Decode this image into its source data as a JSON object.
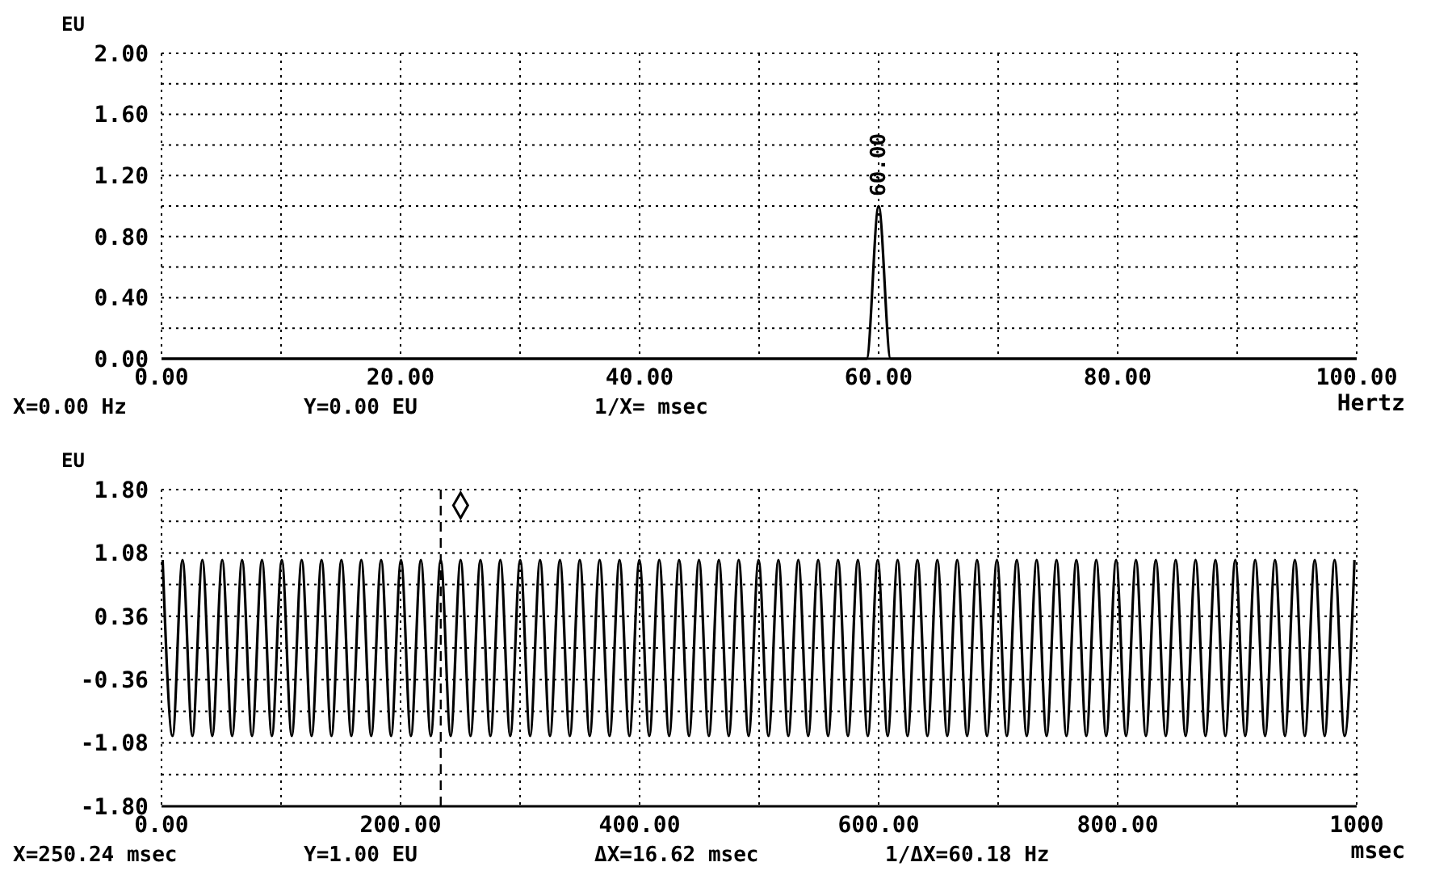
{
  "chart_data": [
    {
      "type": "line",
      "ylabel": "EU",
      "xlabel": "Hertz",
      "xlim": [
        0,
        100
      ],
      "ylim": [
        0,
        2
      ],
      "xticks": [
        {
          "value": 0,
          "label": "0.00"
        },
        {
          "value": 10,
          "label": null
        },
        {
          "value": 20,
          "label": "20.00"
        },
        {
          "value": 30,
          "label": null
        },
        {
          "value": 40,
          "label": "40.00"
        },
        {
          "value": 50,
          "label": null
        },
        {
          "value": 60,
          "label": "60.00"
        },
        {
          "value": 70,
          "label": null
        },
        {
          "value": 80,
          "label": "80.00"
        },
        {
          "value": 90,
          "label": null
        },
        {
          "value": 100,
          "label": "100.00"
        }
      ],
      "yticks": [
        {
          "value": 0,
          "label": "0.00"
        },
        {
          "value": 0.2,
          "label": null
        },
        {
          "value": 0.4,
          "label": "0.40"
        },
        {
          "value": 0.6,
          "label": null
        },
        {
          "value": 0.8,
          "label": "0.80"
        },
        {
          "value": 1.0,
          "label": null
        },
        {
          "value": 1.2,
          "label": "1.20"
        },
        {
          "value": 1.4,
          "label": null
        },
        {
          "value": 1.6,
          "label": "1.60"
        },
        {
          "value": 1.8,
          "label": null
        },
        {
          "value": 2.0,
          "label": "2.00"
        }
      ],
      "grid": true,
      "marker": "none",
      "line_style": "solid",
      "series": [
        {
          "color": "#000000",
          "x": [
            0,
            59,
            60,
            61,
            100
          ],
          "values": [
            0,
            0,
            1.0,
            0,
            0
          ]
        }
      ],
      "annotations": [
        "X=0.00 Hz",
        "Y=0.00 EU",
        "1/X=  msec",
        {
          "text": "60.00",
          "x": 60,
          "y": 1.0
        }
      ]
    },
    {
      "type": "line",
      "ylabel": "EU",
      "xlabel": "msec",
      "xlim": [
        0,
        1000
      ],
      "ylim": [
        -1.8,
        1.8
      ],
      "xticks": [
        {
          "value": 0,
          "label": "0.00"
        },
        {
          "value": 100,
          "label": null
        },
        {
          "value": 200,
          "label": "200.00"
        },
        {
          "value": 300,
          "label": null
        },
        {
          "value": 400,
          "label": "400.00"
        },
        {
          "value": 500,
          "label": null
        },
        {
          "value": 600,
          "label": "600.00"
        },
        {
          "value": 700,
          "label": null
        },
        {
          "value": 800,
          "label": "800.00"
        },
        {
          "value": 900,
          "label": null
        },
        {
          "value": 1000,
          "label": "1000"
        }
      ],
      "yticks": [
        {
          "value": -1.8,
          "label": "-1.80"
        },
        {
          "value": -1.44,
          "label": null
        },
        {
          "value": -1.08,
          "label": "-1.08"
        },
        {
          "value": -0.72,
          "label": null
        },
        {
          "value": -0.36,
          "label": "-0.36"
        },
        {
          "value": 0,
          "label": null
        },
        {
          "value": 0.36,
          "label": "0.36"
        },
        {
          "value": 0.72,
          "label": null
        },
        {
          "value": 1.08,
          "label": "1.08"
        },
        {
          "value": 1.44,
          "label": null
        },
        {
          "value": 1.8,
          "label": "1.80"
        }
      ],
      "grid": true,
      "marker": "none",
      "line_style": "solid",
      "ref_lines": [
        {
          "axis": "x",
          "value": 233.62,
          "line_style": "dashed",
          "color": "#000000"
        }
      ],
      "series": [
        {
          "color": "#000000",
          "x": [
            0.94,
            9.25,
            17.56,
            25.87,
            34.18,
            42.49,
            50.8,
            59.11,
            67.42,
            75.73,
            84.04,
            92.35,
            100.66,
            108.97,
            117.28,
            125.59,
            133.9,
            142.21,
            150.52,
            158.83,
            167.14,
            175.45,
            183.76,
            192.07,
            200.38,
            208.69,
            217.0,
            225.31,
            233.62,
            241.93,
            250.24,
            258.55,
            266.86,
            275.17,
            283.48,
            291.79,
            300.1,
            308.41,
            316.72,
            325.03,
            333.34,
            341.65,
            349.96,
            358.27,
            366.58,
            374.89,
            383.2,
            391.51,
            399.82,
            408.13,
            416.44,
            424.75,
            433.06,
            441.37,
            449.68,
            457.99,
            466.3,
            474.61,
            482.92,
            491.23,
            499.54,
            507.85,
            516.16,
            524.47,
            532.78,
            541.09,
            549.4,
            557.71,
            566.02,
            574.33,
            582.64,
            590.95,
            599.26,
            607.57,
            615.88,
            624.19,
            632.5,
            640.81,
            649.12,
            657.43,
            665.74,
            674.05,
            682.36,
            690.67,
            698.98,
            707.29,
            715.6,
            723.91,
            732.22,
            740.53,
            748.84,
            757.15,
            765.46,
            773.77,
            782.08,
            790.39,
            798.7,
            807.01,
            815.32,
            823.63,
            831.94,
            840.25,
            848.56,
            856.87,
            865.18,
            873.49,
            881.8,
            890.11,
            898.42,
            906.73,
            915.04,
            923.35,
            931.66,
            939.97,
            948.28,
            956.59,
            964.9,
            973.21,
            981.52,
            989.83,
            998.14
          ],
          "values": [
            1,
            -1,
            1,
            -1,
            1,
            -1,
            1,
            -1,
            1,
            -1,
            1,
            -1,
            1,
            -1,
            1,
            -1,
            1,
            -1,
            1,
            -1,
            1,
            -1,
            1,
            -1,
            1,
            -1,
            1,
            -1,
            1,
            -1,
            1,
            -1,
            1,
            -1,
            1,
            -1,
            1,
            -1,
            1,
            -1,
            1,
            -1,
            1,
            -1,
            1,
            -1,
            1,
            -1,
            1,
            -1,
            1,
            -1,
            1,
            -1,
            1,
            -1,
            1,
            -1,
            1,
            -1,
            1,
            -1,
            1,
            -1,
            1,
            -1,
            1,
            -1,
            1,
            -1,
            1,
            -1,
            1,
            -1,
            1,
            -1,
            1,
            -1,
            1,
            -1,
            1,
            -1,
            1,
            -1,
            1,
            -1,
            1,
            -1,
            1,
            -1,
            1,
            -1,
            1,
            -1,
            1,
            -1,
            1,
            -1,
            1,
            -1,
            1,
            -1,
            1,
            -1,
            1,
            -1,
            1,
            -1,
            1,
            -1,
            1,
            -1,
            1,
            -1,
            1,
            -1,
            1,
            -1,
            1,
            -1,
            1
          ]
        },
        {
          "type": "scatter",
          "color": "#000000",
          "marker": "diamond",
          "x": [
            250.24
          ],
          "values": [
            1.62
          ]
        }
      ],
      "annotations": [
        "X=250.24 msec",
        "Y=1.00 EU",
        "ΔX=16.62 msec",
        "1/ΔX=60.18 Hz"
      ]
    }
  ]
}
